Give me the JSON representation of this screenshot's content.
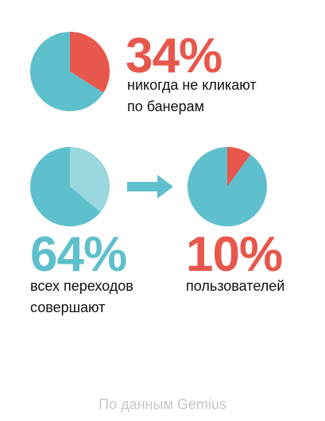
{
  "colors": {
    "teal": "#5ec0cc",
    "teal_light": "#9ad7de",
    "red": "#e8574b",
    "text": "#111111",
    "source": "#c8c8c8"
  },
  "stat_top": {
    "percent": "34%",
    "caption_line1": "никогда не кликают",
    "caption_line2": "по банерам"
  },
  "stat_left": {
    "percent": "64%",
    "caption_line1": "всех переходов",
    "caption_line2": "совершают"
  },
  "stat_right": {
    "percent": "10%",
    "caption_line1": "пользователей"
  },
  "arrow_icon": "arrow-right-icon",
  "source": "По данным Gemius",
  "chart_data": [
    {
      "type": "pie",
      "slices": [
        {
          "label": "",
          "value": 34,
          "color": "#e8574b"
        },
        {
          "label": "",
          "value": 66,
          "color": "#5ec0cc"
        }
      ]
    },
    {
      "type": "pie",
      "slices": [
        {
          "label": "",
          "value": 36,
          "color": "#9ad7de"
        },
        {
          "label": "",
          "value": 64,
          "color": "#5ec0cc"
        }
      ]
    },
    {
      "type": "pie",
      "slices": [
        {
          "label": "",
          "value": 10,
          "color": "#e8574b"
        },
        {
          "label": "",
          "value": 90,
          "color": "#5ec0cc"
        }
      ]
    }
  ]
}
